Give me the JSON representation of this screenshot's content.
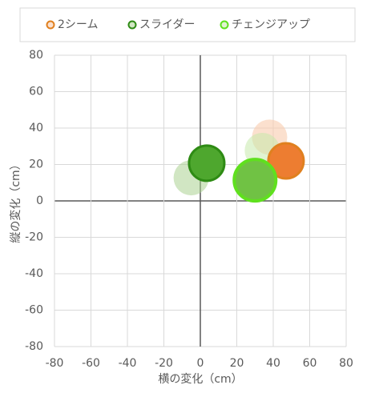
{
  "chart_data": {
    "type": "bubble",
    "xlabel": "横の変化（cm）",
    "ylabel": "縦の変化（cm）",
    "xlim": [
      -80,
      80
    ],
    "xticks": [
      -80,
      -60,
      -40,
      -20,
      0,
      20,
      40,
      60,
      80
    ],
    "ylim": [
      -80,
      80
    ],
    "yticks": [
      -80,
      -60,
      -40,
      -20,
      0,
      20,
      40,
      60,
      80
    ],
    "grid": true,
    "legend": "top",
    "series": [
      {
        "name": "2シーム",
        "color": "#ED7D31",
        "edgecolor": "#E0801F",
        "colors": [
          "#F8CBAD99",
          "#ED7D31"
        ],
        "x": [
          38,
          47
        ],
        "y": [
          35,
          22
        ]
      },
      {
        "name": "スライダー",
        "color": "#4EA72E",
        "edgecolor": "#2E8B14",
        "colors": [
          "#A9D18E88",
          "#4EA72E"
        ],
        "x": [
          -5,
          3.5
        ],
        "y": [
          12.7,
          20.7
        ]
      },
      {
        "name": "チェンジアップ",
        "color": "#7ED957",
        "edgecolor": "#5FE01E",
        "colors": [
          "#C5E8A888",
          "#70C244"
        ],
        "x": [
          34,
          30
        ],
        "y": [
          27.7,
          11.4
        ]
      }
    ]
  }
}
